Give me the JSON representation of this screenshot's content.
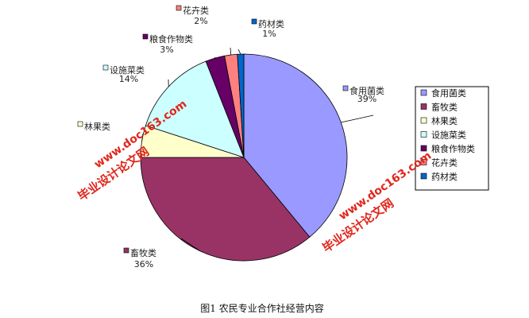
{
  "chart_data": {
    "type": "pie",
    "categories": [
      "食用菌类",
      "畜牧类",
      "林果类",
      "设施菜类",
      "粮食作物类",
      "花卉类",
      "药材类"
    ],
    "values": [
      39,
      36,
      5,
      14,
      3,
      2,
      1
    ],
    "percent_labels": [
      "39%",
      "36%",
      "",
      "14%",
      "3%",
      "2%",
      "1%"
    ],
    "colors": [
      "#9999ff",
      "#993366",
      "#ffffcc",
      "#ccffff",
      "#660066",
      "#ff8080",
      "#0066cc"
    ],
    "legend_position": "right"
  },
  "caption": "图1 农民专业合作社经营内容",
  "watermark": {
    "site": "www.doc163.com",
    "name": "毕业设计论文网"
  }
}
